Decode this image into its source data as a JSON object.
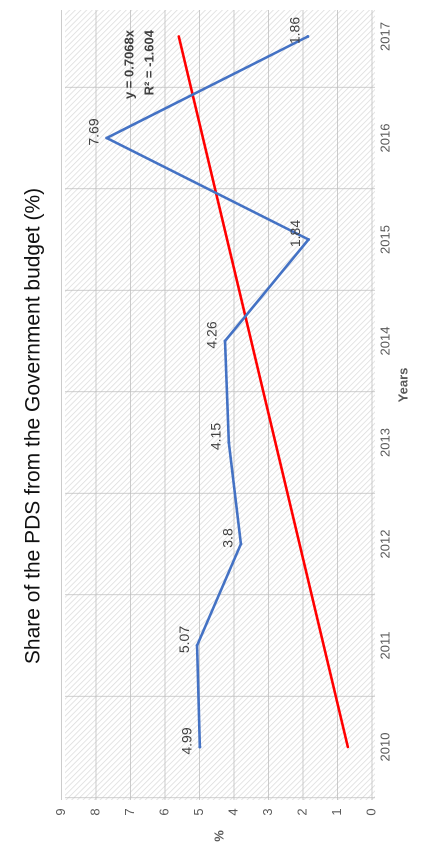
{
  "chart_data": {
    "type": "line",
    "title": "Share of the PDS from the Government budget (%)",
    "xlabel": "Years",
    "ylabel": "%",
    "categories": [
      "2010",
      "2011",
      "2012",
      "2013",
      "2014",
      "2015",
      "2016",
      "2017"
    ],
    "series": [
      {
        "values": [
          4.99,
          5.07,
          3.8,
          4.15,
          4.26,
          1.84,
          7.69,
          1.86
        ],
        "color": "#4472C4"
      }
    ],
    "data_labels": [
      "4.99",
      "5.07",
      "3.8",
      "4.15",
      "4.26",
      "1.84",
      "7.69",
      "1.86"
    ],
    "trendline": {
      "color": "#FF0000",
      "start_value": 0.7,
      "end_value": 5.6,
      "equation": "y = 0.7068x",
      "r_squared": "R² = -1.604"
    },
    "ylim": [
      0,
      9
    ],
    "yticks": [
      "0",
      "1",
      "2",
      "3",
      "4",
      "5",
      "6",
      "7",
      "8",
      "9"
    ],
    "grid": true,
    "background": "hatched",
    "orientation": "rotated-90-ccw"
  }
}
